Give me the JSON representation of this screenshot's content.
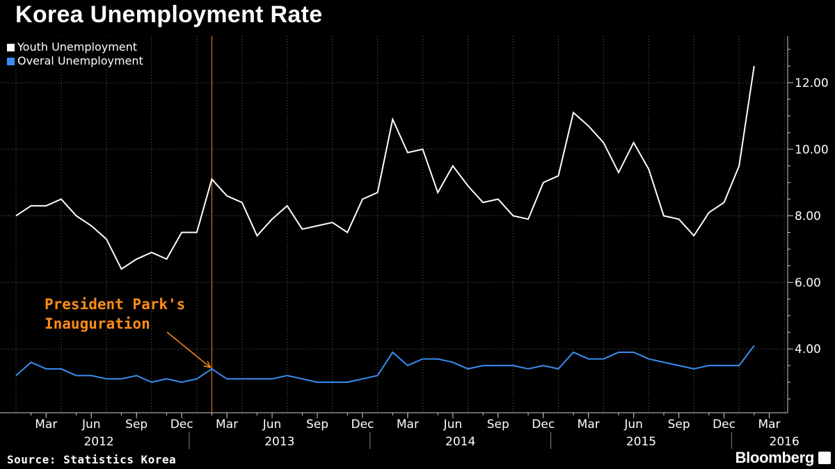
{
  "chart_data": {
    "type": "line",
    "title": "Korea Unemployment Rate",
    "source": "Source: Statistics Korea",
    "brand": "Bloomberg",
    "ylim": [
      1.75,
      13.5
    ],
    "yticks": [
      "4.00",
      "6.00",
      "8.00",
      "10.00",
      "12.00"
    ],
    "x_month_ticks": [
      "Mar",
      "Jun",
      "Sep",
      "Dec",
      "Mar",
      "Jun",
      "Sep",
      "Dec",
      "Mar",
      "Jun",
      "Sep",
      "Dec",
      "Mar",
      "Jun",
      "Sep",
      "Dec",
      "Mar"
    ],
    "x_year_labels": [
      "2012",
      "2013",
      "2014",
      "2015",
      "2016"
    ],
    "series": [
      {
        "name": "Youth Unemployment",
        "color": "#ffffff",
        "start": "2012-01",
        "values": [
          8.0,
          8.3,
          8.3,
          8.5,
          8.0,
          7.7,
          7.3,
          6.4,
          6.7,
          6.9,
          6.7,
          7.5,
          7.5,
          9.1,
          8.6,
          8.4,
          7.4,
          7.9,
          8.3,
          7.6,
          7.7,
          7.8,
          7.5,
          8.5,
          8.7,
          10.9,
          9.9,
          10.0,
          8.7,
          9.5,
          8.9,
          8.4,
          8.5,
          8.0,
          7.9,
          9.0,
          9.2,
          11.1,
          10.7,
          10.2,
          9.3,
          10.2,
          9.4,
          8.0,
          7.9,
          7.4,
          8.1,
          8.4,
          9.5,
          12.5
        ]
      },
      {
        "name": "Overal Unemployment",
        "color": "#3a8ef0",
        "start": "2012-01",
        "values": [
          3.2,
          3.6,
          3.4,
          3.4,
          3.2,
          3.2,
          3.1,
          3.1,
          3.2,
          3.0,
          3.1,
          3.0,
          3.1,
          3.4,
          3.1,
          3.1,
          3.1,
          3.1,
          3.2,
          3.1,
          3.0,
          3.0,
          3.0,
          3.1,
          3.2,
          3.9,
          3.5,
          3.7,
          3.7,
          3.6,
          3.4,
          3.5,
          3.5,
          3.5,
          3.4,
          3.5,
          3.4,
          3.9,
          3.7,
          3.7,
          3.9,
          3.9,
          3.7,
          3.6,
          3.5,
          3.4,
          3.5,
          3.5,
          3.5,
          4.1
        ]
      }
    ],
    "annotation": {
      "line1": "President Park's",
      "line2": "Inauguration",
      "month_index": 13,
      "color": "#ff8c1a"
    }
  }
}
